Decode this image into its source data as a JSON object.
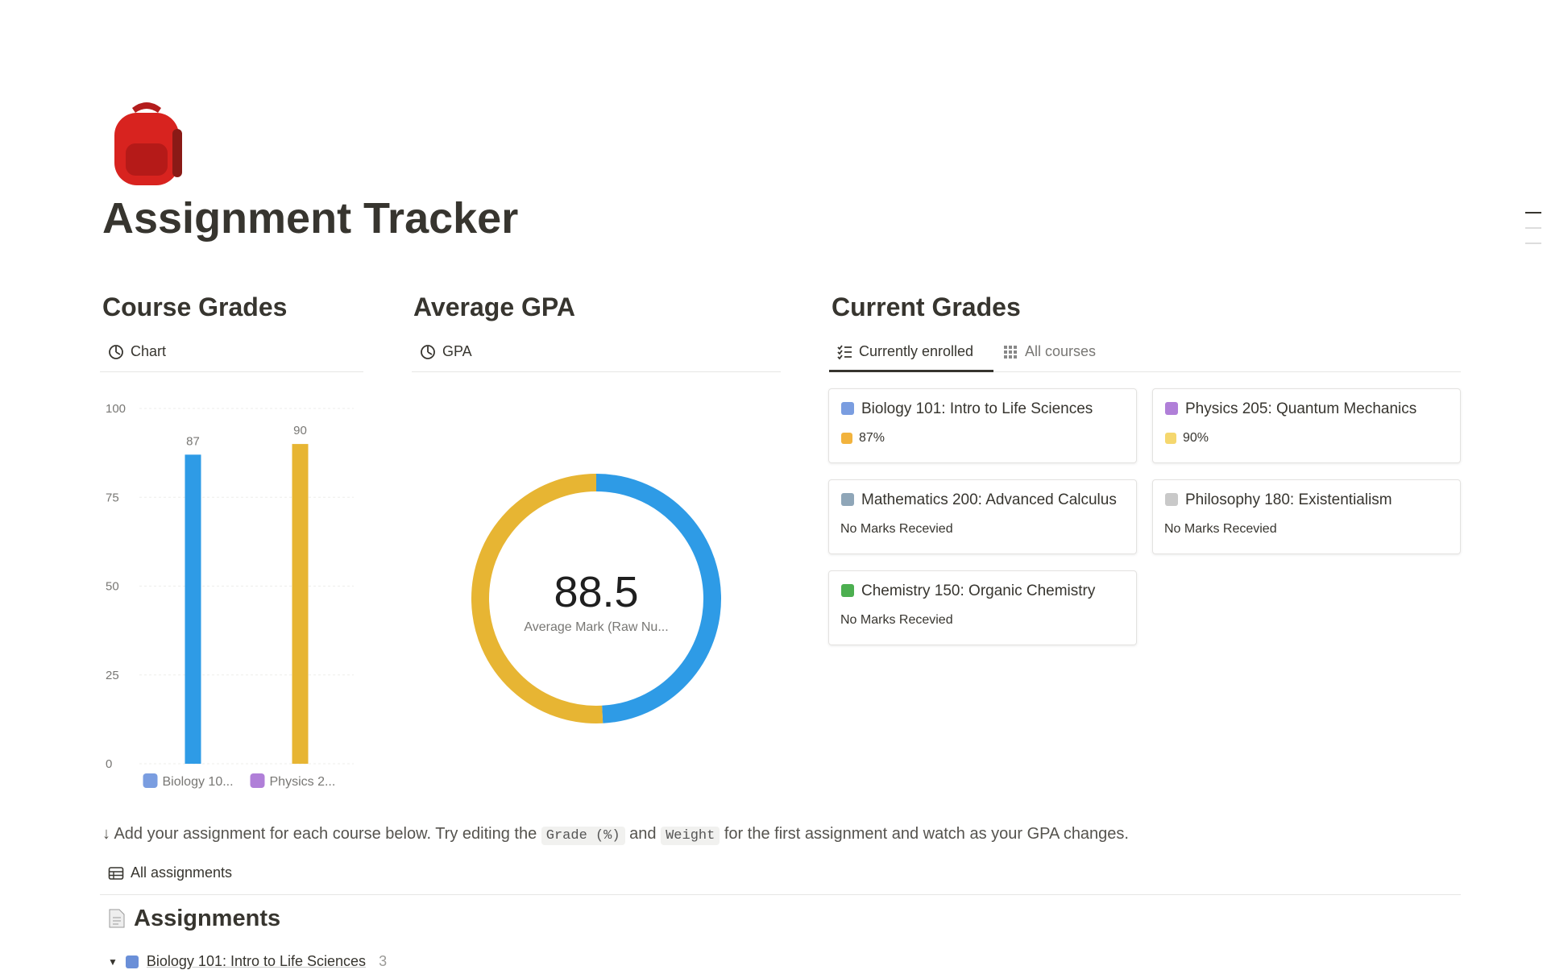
{
  "header": {
    "title": "Assignment Tracker"
  },
  "course_grades": {
    "heading": "Course Grades",
    "tab": "Chart"
  },
  "average_gpa": {
    "heading": "Average GPA",
    "tab": "GPA"
  },
  "chart_data": [
    {
      "type": "bar",
      "categories": [
        "Biology 10...",
        "Physics 2..."
      ],
      "values": [
        87,
        90
      ],
      "colors": [
        "#2e9be6",
        "#e7b533"
      ],
      "ylim": [
        0,
        100
      ],
      "yticks": [
        0,
        25,
        50,
        75,
        100
      ],
      "grid": true
    },
    {
      "type": "donut",
      "categories": [
        "Biology 10...",
        "Physics 2..."
      ],
      "values": [
        87,
        90
      ],
      "colors": [
        "#2e9be6",
        "#e7b533"
      ],
      "center_value": 88.5,
      "center_label": "Average Mark (Raw Nu..."
    }
  ],
  "current_grades": {
    "heading": "Current Grades",
    "tabs": [
      "Currently enrolled",
      "All courses"
    ],
    "cards": [
      {
        "title": "Biology 101: Intro to Life Sciences",
        "grade": "87%"
      },
      {
        "title": "Physics 205: Quantum Mechanics",
        "grade": "90%"
      },
      {
        "title": "Mathematics 200: Advanced Calculus",
        "grade": "No Marks Recevied"
      },
      {
        "title": "Philosophy 180: Existentialism",
        "grade": "No Marks Recevied"
      },
      {
        "title": "Chemistry 150: Organic Chemistry",
        "grade": "No Marks Recevied"
      }
    ]
  },
  "instructions": {
    "parts": [
      "↓ Add your assignment for each course below. Try editing the",
      "Grade (%)",
      "and",
      "Weight",
      "for the first assignment and watch as your GPA changes."
    ]
  },
  "assignments": {
    "view": "All assignments",
    "heading": "Assignments",
    "groups": [
      {
        "name": "Biology 101: Intro to Life Sciences",
        "count": 3
      }
    ]
  }
}
